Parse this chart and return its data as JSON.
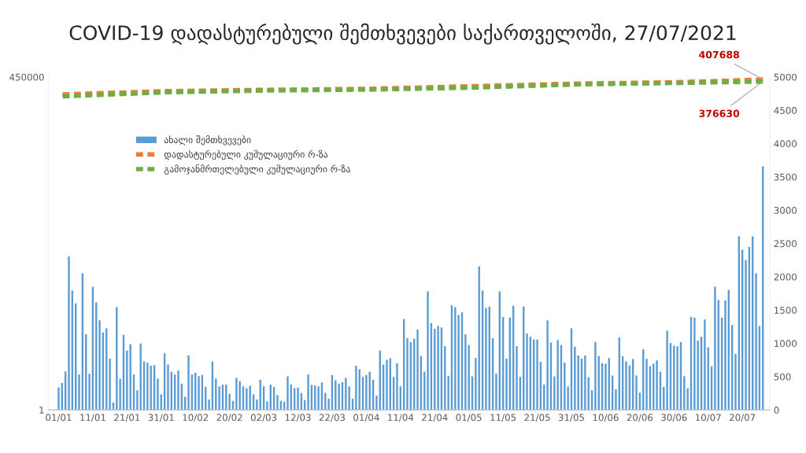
{
  "chart_data": {
    "type": "bar",
    "title": "COVID-19 დადასტურებული შემთხვევები საქართველოში, 27/07/2021",
    "x": [
      "2021-01-01",
      "2021-01-02",
      "2021-01-03",
      "2021-01-04",
      "2021-01-05",
      "2021-01-06",
      "2021-01-07",
      "2021-01-08",
      "2021-01-09",
      "2021-01-10",
      "2021-01-11",
      "2021-01-12",
      "2021-01-13",
      "2021-01-14",
      "2021-01-15",
      "2021-01-16",
      "2021-01-17",
      "2021-01-18",
      "2021-01-19",
      "2021-01-20",
      "2021-01-21",
      "2021-01-22",
      "2021-01-23",
      "2021-01-24",
      "2021-01-25",
      "2021-01-26",
      "2021-01-27",
      "2021-01-28",
      "2021-01-29",
      "2021-01-30",
      "2021-01-31",
      "2021-02-01",
      "2021-02-02",
      "2021-02-03",
      "2021-02-04",
      "2021-02-05",
      "2021-02-06",
      "2021-02-07",
      "2021-02-08",
      "2021-02-09",
      "2021-02-10",
      "2021-02-11",
      "2021-02-12",
      "2021-02-13",
      "2021-02-14",
      "2021-02-15",
      "2021-02-16",
      "2021-02-17",
      "2021-02-18",
      "2021-02-19",
      "2021-02-20",
      "2021-02-21",
      "2021-02-22",
      "2021-02-23",
      "2021-02-24",
      "2021-02-25",
      "2021-02-26",
      "2021-02-27",
      "2021-02-28",
      "2021-03-01",
      "2021-03-02",
      "2021-03-03",
      "2021-03-04",
      "2021-03-05",
      "2021-03-06",
      "2021-03-07",
      "2021-03-08",
      "2021-03-09",
      "2021-03-10",
      "2021-03-11",
      "2021-03-12",
      "2021-03-13",
      "2021-03-14",
      "2021-03-15",
      "2021-03-16",
      "2021-03-17",
      "2021-03-18",
      "2021-03-19",
      "2021-03-20",
      "2021-03-21",
      "2021-03-22",
      "2021-03-23",
      "2021-03-24",
      "2021-03-25",
      "2021-03-26",
      "2021-03-27",
      "2021-03-28",
      "2021-03-29",
      "2021-03-30",
      "2021-03-31",
      "2021-04-01",
      "2021-04-02",
      "2021-04-03",
      "2021-04-04",
      "2021-04-05",
      "2021-04-06",
      "2021-04-07",
      "2021-04-08",
      "2021-04-09",
      "2021-04-10",
      "2021-04-11",
      "2021-04-12",
      "2021-04-13",
      "2021-04-14",
      "2021-04-15",
      "2021-04-16",
      "2021-04-17",
      "2021-04-18",
      "2021-04-19",
      "2021-04-20",
      "2021-04-21",
      "2021-04-22",
      "2021-04-23",
      "2021-04-24",
      "2021-04-25",
      "2021-04-26",
      "2021-04-27",
      "2021-04-28",
      "2021-04-29",
      "2021-04-30",
      "2021-05-01",
      "2021-05-02",
      "2021-05-03",
      "2021-05-04",
      "2021-05-05",
      "2021-05-06",
      "2021-05-07",
      "2021-05-08",
      "2021-05-09",
      "2021-05-10",
      "2021-05-11",
      "2021-05-12",
      "2021-05-13",
      "2021-05-14",
      "2021-05-15",
      "2021-05-16",
      "2021-05-17",
      "2021-05-18",
      "2021-05-19",
      "2021-05-20",
      "2021-05-21",
      "2021-05-22",
      "2021-05-23",
      "2021-05-24",
      "2021-05-25",
      "2021-05-26",
      "2021-05-27",
      "2021-05-28",
      "2021-05-29",
      "2021-05-30",
      "2021-05-31",
      "2021-06-01",
      "2021-06-02",
      "2021-06-03",
      "2021-06-04",
      "2021-06-05",
      "2021-06-06",
      "2021-06-07",
      "2021-06-08",
      "2021-06-09",
      "2021-06-10",
      "2021-06-11",
      "2021-06-12",
      "2021-06-13",
      "2021-06-14",
      "2021-06-15",
      "2021-06-16",
      "2021-06-17",
      "2021-06-18",
      "2021-06-19",
      "2021-06-20",
      "2021-06-21",
      "2021-06-22",
      "2021-06-23",
      "2021-06-24",
      "2021-06-25",
      "2021-06-26",
      "2021-06-27",
      "2021-06-28",
      "2021-06-29",
      "2021-06-30",
      "2021-07-01",
      "2021-07-02",
      "2021-07-03",
      "2021-07-04",
      "2021-07-05",
      "2021-07-06",
      "2021-07-07",
      "2021-07-08",
      "2021-07-09",
      "2021-07-10",
      "2021-07-11",
      "2021-07-12",
      "2021-07-13",
      "2021-07-14",
      "2021-07-15",
      "2021-07-16",
      "2021-07-17",
      "2021-07-18",
      "2021-07-19",
      "2021-07-20",
      "2021-07-21",
      "2021-07-22",
      "2021-07-23",
      "2021-07-24",
      "2021-07-25",
      "2021-07-26"
    ],
    "series": [
      {
        "name": "ახალი შემთხვევები",
        "axis": "y2",
        "color": "#5b9bd5",
        "values": [
          339,
          405,
          578,
          2305,
          1792,
          1602,
          533,
          2053,
          1136,
          545,
          1850,
          1615,
          1346,
          1165,
          1227,
          772,
          112,
          1545,
          467,
          1127,
          892,
          987,
          533,
          297,
          999,
          731,
          710,
          665,
          673,
          471,
          235,
          850,
          681,
          574,
          533,
          591,
          396,
          198,
          818,
          533,
          558,
          508,
          525,
          347,
          157,
          727,
          471,
          355,
          380,
          380,
          244,
          136,
          483,
          434,
          355,
          326,
          363,
          235,
          157,
          454,
          355,
          128,
          380,
          347,
          223,
          136,
          124,
          504,
          384,
          326,
          335,
          256,
          149,
          533,
          376,
          368,
          355,
          413,
          256,
          169,
          525,
          446,
          396,
          417,
          483,
          355,
          169,
          665,
          611,
          496,
          525,
          574,
          454,
          215,
          892,
          681,
          752,
          776,
          496,
          702,
          355,
          1367,
          1078,
          1020,
          1070,
          1206,
          809,
          574,
          1780,
          1305,
          1218,
          1264,
          1239,
          958,
          512,
          1573,
          1545,
          1425,
          1466,
          1136,
          975,
          504,
          781,
          2156,
          1792,
          1533,
          1553,
          1078,
          545,
          1780,
          1396,
          772,
          1388,
          1565,
          958,
          496,
          1553,
          1148,
          1099,
          1057,
          1057,
          723,
          380,
          1346,
          1012,
          504,
          1049,
          975,
          710,
          351,
          1227,
          950,
          818,
          772,
          818,
          491,
          297,
          1020,
          809,
          702,
          694,
          781,
          516,
          310,
          1090,
          805,
          731,
          669,
          764,
          516,
          260,
          909,
          768,
          657,
          694,
          743,
          574,
          347,
          1189,
          1004,
          966,
          958,
          1020,
          508,
          326,
          1396,
          1384,
          1041,
          1099,
          1359,
          938,
          657,
          1850,
          1652,
          1384,
          1644,
          1805,
          1276,
          843,
          2606,
          2408,
          2251,
          2449,
          2606,
          2053,
          1260,
          3659
        ]
      },
      {
        "name": "დადასტურებული კუმულაციური რ-ზა",
        "type": "line",
        "color": "#ed7d31",
        "line_style": "dashed",
        "x": [
          "2021-01-01",
          "2021-02-01",
          "2021-03-01",
          "2021-04-01",
          "2021-05-01",
          "2021-06-01",
          "2021-07-01",
          "2021-07-26"
        ],
        "values": [
          227000,
          259000,
          272000,
          283000,
          313000,
          348000,
          367000,
          407688
        ],
        "value_labels": [
          null,
          null,
          null,
          null,
          null,
          null,
          null,
          "407688"
        ]
      },
      {
        "name": "გამოჯანმრთელებული კუმულაციური რ-ზა",
        "type": "line",
        "color": "#70ad47",
        "line_style": "dashed",
        "x": [
          "2021-01-01",
          "2021-02-01",
          "2021-03-01",
          "2021-04-01",
          "2021-05-01",
          "2021-06-01",
          "2021-07-01",
          "2021-07-26"
        ],
        "values": [
          210000,
          247000,
          265000,
          275000,
          296000,
          336000,
          357000,
          376630
        ],
        "value_labels": [
          null,
          null,
          null,
          null,
          null,
          null,
          null,
          "376630"
        ]
      }
    ],
    "xlim": [
      "2020-12-29",
      "2021-07-28"
    ],
    "xticks": [
      {
        "value": "2021-01-01",
        "label": "01/01"
      },
      {
        "value": "2021-01-11",
        "label": "11/01"
      },
      {
        "value": "2021-01-21",
        "label": "21/01"
      },
      {
        "value": "2021-01-31",
        "label": "31/01"
      },
      {
        "value": "2021-02-10",
        "label": "10/02"
      },
      {
        "value": "2021-02-20",
        "label": "20/02"
      },
      {
        "value": "2021-03-02",
        "label": "02/03"
      },
      {
        "value": "2021-03-12",
        "label": "12/03"
      },
      {
        "value": "2021-03-22",
        "label": "22/03"
      },
      {
        "value": "2021-04-01",
        "label": "01/04"
      },
      {
        "value": "2021-04-11",
        "label": "11/04"
      },
      {
        "value": "2021-04-21",
        "label": "21/04"
      },
      {
        "value": "2021-05-01",
        "label": "01/05"
      },
      {
        "value": "2021-05-11",
        "label": "11/05"
      },
      {
        "value": "2021-05-21",
        "label": "21/05"
      },
      {
        "value": "2021-05-31",
        "label": "31/05"
      },
      {
        "value": "2021-06-10",
        "label": "10/06"
      },
      {
        "value": "2021-06-20",
        "label": "20/06"
      },
      {
        "value": "2021-06-30",
        "label": "30/06"
      },
      {
        "value": "2021-07-10",
        "label": "10/07"
      },
      {
        "value": "2021-07-20",
        "label": "20/07"
      }
    ],
    "log": "y",
    "ylim": [
      1,
      450000
    ],
    "yticks": [
      1,
      450000
    ],
    "y2lim": [
      0,
      5000
    ],
    "y2ticks": [
      0,
      500,
      1000,
      1500,
      2000,
      2500,
      3000,
      3500,
      4000,
      4500,
      5000
    ],
    "legend": "top left",
    "grid": false
  }
}
